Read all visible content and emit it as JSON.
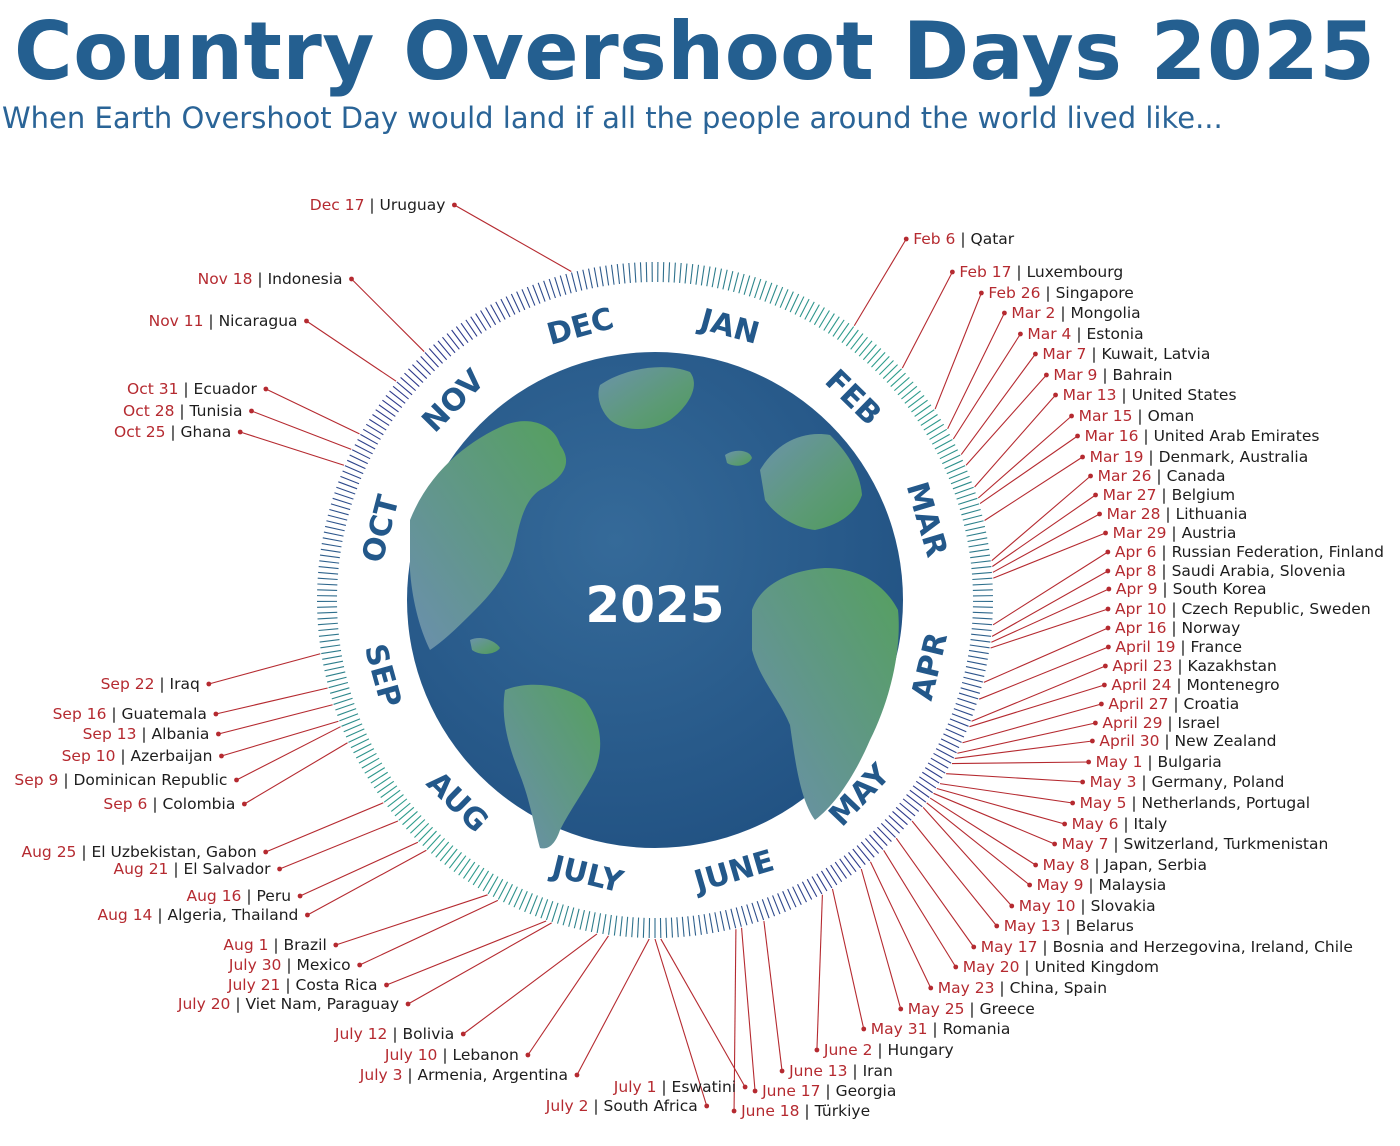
{
  "title": "Country Overshoot Days 2025",
  "subtitle": "When Earth Overshoot Day would land if all the people around the world lived like...",
  "center_label": "2025",
  "months": [
    "JAN",
    "FEB",
    "MAR",
    "APR",
    "MAY",
    "JUNE",
    "JULY",
    "AUG",
    "SEP",
    "OCT",
    "NOV",
    "DEC"
  ],
  "colors": {
    "title": "#245f90",
    "date": "#b52a30",
    "ocean": "#2b5e8e",
    "land": "#5e9a6a",
    "ring": "#2e6b8c"
  },
  "entries": [
    {
      "date": "Feb 6",
      "country": "Qatar"
    },
    {
      "date": "Feb 17",
      "country": "Luxembourg"
    },
    {
      "date": "Feb 26",
      "country": "Singapore"
    },
    {
      "date": "Mar 2",
      "country": "Mongolia"
    },
    {
      "date": "Mar 4",
      "country": "Estonia"
    },
    {
      "date": "Mar 7",
      "country": "Kuwait, Latvia"
    },
    {
      "date": "Mar 9",
      "country": "Bahrain"
    },
    {
      "date": "Mar 13",
      "country": "United States"
    },
    {
      "date": "Mar 15",
      "country": "Oman"
    },
    {
      "date": "Mar 16",
      "country": "United Arab Emirates"
    },
    {
      "date": "Mar 19",
      "country": "Denmark, Australia"
    },
    {
      "date": "Mar 26",
      "country": "Canada"
    },
    {
      "date": "Mar 27",
      "country": "Belgium"
    },
    {
      "date": "Mar 28",
      "country": "Lithuania"
    },
    {
      "date": "Mar 29",
      "country": "Austria"
    },
    {
      "date": "Apr 6",
      "country": "Russian Federation, Finland"
    },
    {
      "date": "Apr 8",
      "country": "Saudi Arabia, Slovenia"
    },
    {
      "date": "Apr 9",
      "country": "South Korea"
    },
    {
      "date": "Apr 10",
      "country": "Czech Republic, Sweden"
    },
    {
      "date": "Apr 16",
      "country": "Norway"
    },
    {
      "date": "April 19",
      "country": "France"
    },
    {
      "date": "April 23",
      "country": "Kazakhstan"
    },
    {
      "date": "April 24",
      "country": "Montenegro"
    },
    {
      "date": "April 27",
      "country": "Croatia"
    },
    {
      "date": "April 29",
      "country": "Israel"
    },
    {
      "date": "April 30",
      "country": "New Zealand"
    },
    {
      "date": "May 1",
      "country": "Bulgaria"
    },
    {
      "date": "May 3",
      "country": "Germany, Poland"
    },
    {
      "date": "May 5",
      "country": "Netherlands, Portugal"
    },
    {
      "date": "May 6",
      "country": "Italy"
    },
    {
      "date": "May 7",
      "country": "Switzerland, Turkmenistan"
    },
    {
      "date": "May 8",
      "country": "Japan, Serbia"
    },
    {
      "date": "May 9",
      "country": "Malaysia"
    },
    {
      "date": "May 10",
      "country": "Slovakia"
    },
    {
      "date": "May 13",
      "country": "Belarus"
    },
    {
      "date": "May 17",
      "country": "Bosnia and Herzegovina, Ireland, Chile"
    },
    {
      "date": "May 20",
      "country": "United Kingdom"
    },
    {
      "date": "May 23",
      "country": "China, Spain"
    },
    {
      "date": "May 25",
      "country": "Greece"
    },
    {
      "date": "May 31",
      "country": "Romania"
    },
    {
      "date": "June 2",
      "country": "Hungary"
    },
    {
      "date": "June 13",
      "country": "Iran"
    },
    {
      "date": "June 17",
      "country": "Georgia"
    },
    {
      "date": "June 18",
      "country": "Türkiye"
    },
    {
      "date": "July 1",
      "country": "Eswatini"
    },
    {
      "date": "July 2",
      "country": "South Africa"
    },
    {
      "date": "July 3",
      "country": "Armenia, Argentina"
    },
    {
      "date": "July 10",
      "country": "Lebanon"
    },
    {
      "date": "July 12",
      "country": "Bolivia"
    },
    {
      "date": "July 20",
      "country": "Viet Nam, Paraguay"
    },
    {
      "date": "July 21",
      "country": "Costa Rica"
    },
    {
      "date": "July 30",
      "country": "Mexico"
    },
    {
      "date": "Aug 1",
      "country": "Brazil"
    },
    {
      "date": "Aug 14",
      "country": "Algeria, Thailand"
    },
    {
      "date": "Aug 16",
      "country": "Peru"
    },
    {
      "date": "Aug 21",
      "country": "El Salvador"
    },
    {
      "date": "Aug 25",
      "country": "El Uzbekistan, Gabon"
    },
    {
      "date": "Sep 6",
      "country": "Colombia"
    },
    {
      "date": "Sep 9",
      "country": "Dominican Republic"
    },
    {
      "date": "Sep 10",
      "country": "Azerbaijan"
    },
    {
      "date": "Sep 13",
      "country": "Albania"
    },
    {
      "date": "Sep 16",
      "country": "Guatemala"
    },
    {
      "date": "Sep 22",
      "country": "Iraq"
    },
    {
      "date": "Oct 25",
      "country": "Ghana"
    },
    {
      "date": "Oct 28",
      "country": "Tunisia"
    },
    {
      "date": "Oct 31",
      "country": "Ecuador"
    },
    {
      "date": "Nov 11",
      "country": "Nicaragua"
    },
    {
      "date": "Nov 18",
      "country": "Indonesia"
    },
    {
      "date": "Dec 17",
      "country": "Uruguay"
    }
  ]
}
